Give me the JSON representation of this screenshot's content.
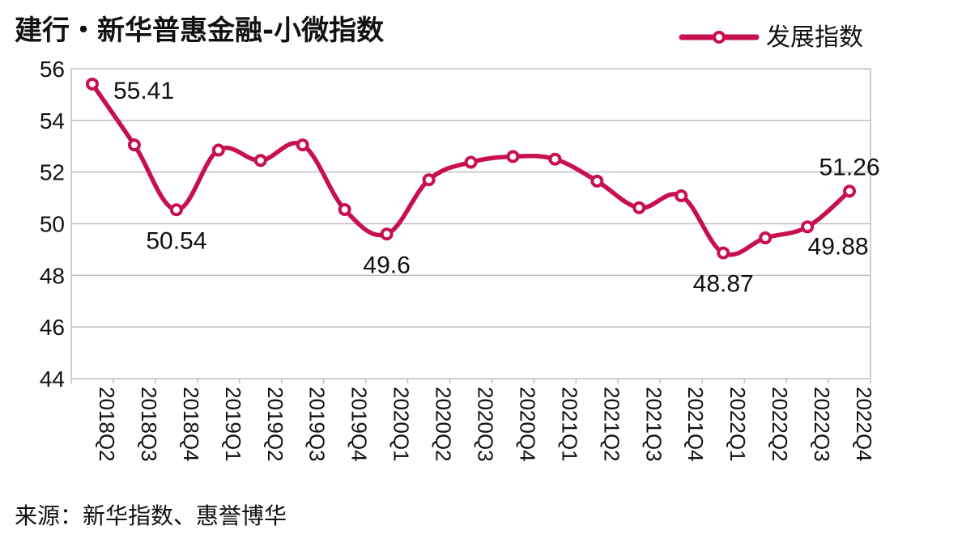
{
  "title": "建行・新华普惠金融-小微指数",
  "source": "来源：新华指数、惠誉博华",
  "chart_data": {
    "type": "line",
    "categories": [
      "2018Q2",
      "2018Q3",
      "2018Q4",
      "2019Q1",
      "2019Q2",
      "2019Q3",
      "2019Q4",
      "2020Q1",
      "2020Q2",
      "2020Q3",
      "2020Q4",
      "2021Q1",
      "2021Q2",
      "2021Q3",
      "2021Q4",
      "2022Q1",
      "2022Q2",
      "2022Q3",
      "2022Q4"
    ],
    "series": [
      {
        "name": "发展指数",
        "color": "#c8104f",
        "values": [
          55.41,
          53.05,
          50.54,
          52.85,
          52.45,
          53.05,
          50.55,
          49.6,
          51.7,
          52.38,
          52.6,
          52.5,
          51.65,
          50.62,
          51.08,
          48.87,
          49.45,
          49.88,
          51.26
        ]
      }
    ],
    "data_labels": [
      {
        "index": 0,
        "text": "55.41",
        "position": "right"
      },
      {
        "index": 2,
        "text": "50.54",
        "position": "below"
      },
      {
        "index": 7,
        "text": "49.6",
        "position": "below"
      },
      {
        "index": 15,
        "text": "48.87",
        "position": "below"
      },
      {
        "index": 17,
        "text": "49.88",
        "position": "below-right"
      },
      {
        "index": 18,
        "text": "51.26",
        "position": "above"
      }
    ],
    "ylim": [
      44,
      56
    ],
    "yticks": [
      44,
      46,
      48,
      50,
      52,
      54,
      56
    ],
    "xlabel": "",
    "ylabel": "",
    "grid": true,
    "legend": "top-right"
  }
}
